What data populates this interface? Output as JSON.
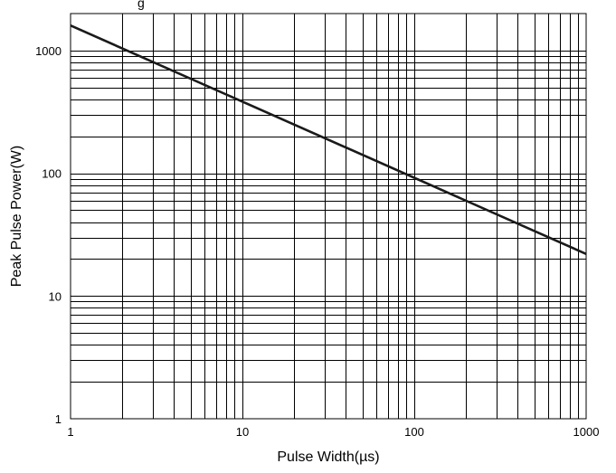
{
  "chart_data": {
    "type": "line",
    "title_fragment": "g",
    "xlabel": "Pulse Width(µs)",
    "ylabel": "Peak Pulse Power(W)",
    "xscale": "log",
    "yscale": "log",
    "xlim": [
      1,
      1000
    ],
    "ylim": [
      1,
      2000
    ],
    "grid": true,
    "x_ticks": [
      1,
      10,
      100,
      1000
    ],
    "x_tick_labels": [
      "1",
      "10",
      "100",
      "1000"
    ],
    "y_ticks": [
      1,
      10,
      100,
      1000
    ],
    "y_tick_labels": [
      "1",
      "10",
      "100",
      "1000"
    ],
    "series": [
      {
        "x": [
          1,
          1000
        ],
        "y": [
          1600,
          22
        ],
        "color": "#1a1a1a"
      }
    ]
  }
}
